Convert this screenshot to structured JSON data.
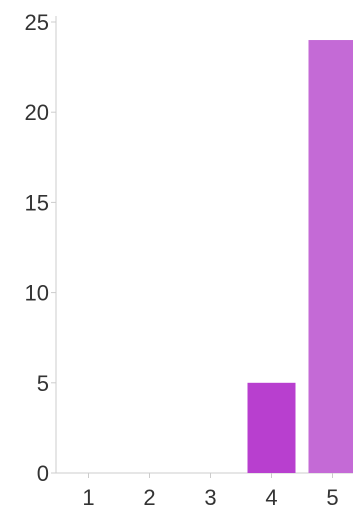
{
  "chart_data": {
    "type": "bar",
    "categories": [
      "1",
      "2",
      "3",
      "4",
      "5"
    ],
    "values": [
      0,
      0,
      0,
      5,
      24
    ],
    "title": "",
    "xlabel": "",
    "ylabel": "",
    "ylim": [
      0,
      25
    ],
    "yticks": [
      0,
      5,
      10,
      15,
      20,
      25
    ],
    "grid": false,
    "colors": {
      "bar_4": "#b83fcf",
      "bar_5": "#c46ad6",
      "bar_default": "#c46ad6",
      "axis": "#cccccc",
      "tick_text": "#333333"
    }
  }
}
